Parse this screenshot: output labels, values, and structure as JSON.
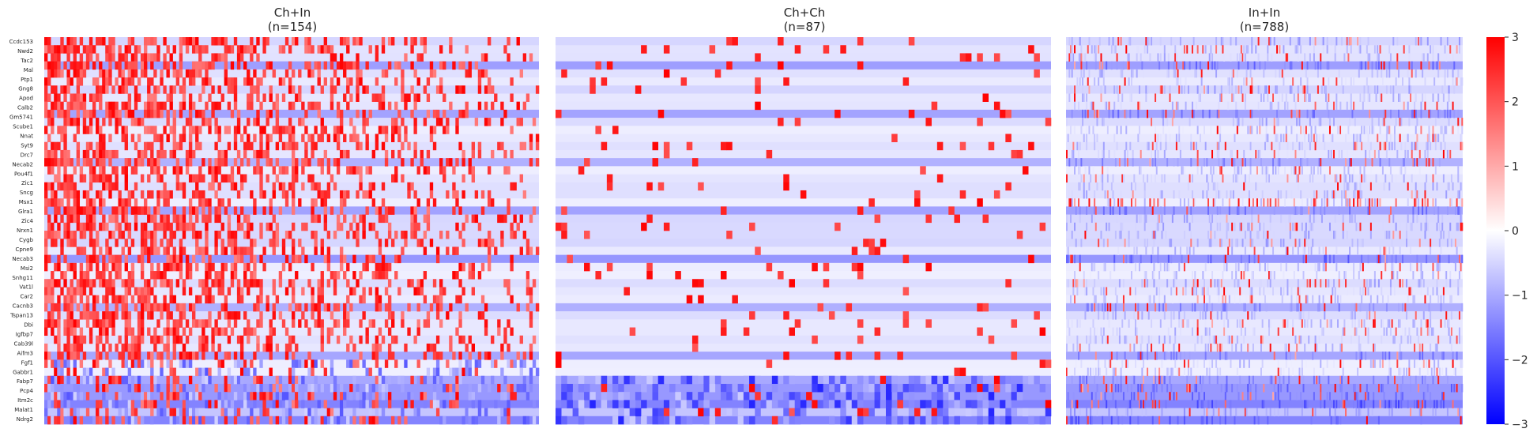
{
  "chart_data": {
    "type": "heatmap",
    "genes": [
      "Ccdc153",
      "Nwd2",
      "Tac2",
      "Mal",
      "Ptp1",
      "Gng8",
      "Apod",
      "Calb2",
      "Gm5741",
      "Scube1",
      "Nnat",
      "Syt9",
      "Drc7",
      "Necab2",
      "Pou4f1",
      "Zic1",
      "Sncg",
      "Msx1",
      "Glra1",
      "Zic4",
      "Nrxn1",
      "Cygb",
      "Cpne9",
      "Necab3",
      "Msi2",
      "Snhg11",
      "Vat1l",
      "Car2",
      "Cacnb3",
      "Tspan13",
      "Dbi",
      "Igfbp7",
      "Cab39l",
      "Aifm3",
      "Fgf1",
      "Gabbr1",
      "Fabp7",
      "Pcp4",
      "Itm2c",
      "Malat1",
      "Ndrg2"
    ],
    "panels": [
      {
        "title": "Ch+In",
        "subtitle": "(n=154)",
        "n": 154
      },
      {
        "title": "Ch+Ch",
        "subtitle": "(n=87)",
        "n": 87
      },
      {
        "title": "In+In",
        "subtitle": "(n=788)",
        "n": 788
      }
    ],
    "colorbar": {
      "min": -3,
      "max": 3,
      "ticks": [
        "3",
        "2",
        "1",
        "0",
        "−1",
        "−2",
        "−3"
      ],
      "colors": [
        "#0000ff",
        "#ffffff",
        "#ff0000"
      ]
    }
  }
}
